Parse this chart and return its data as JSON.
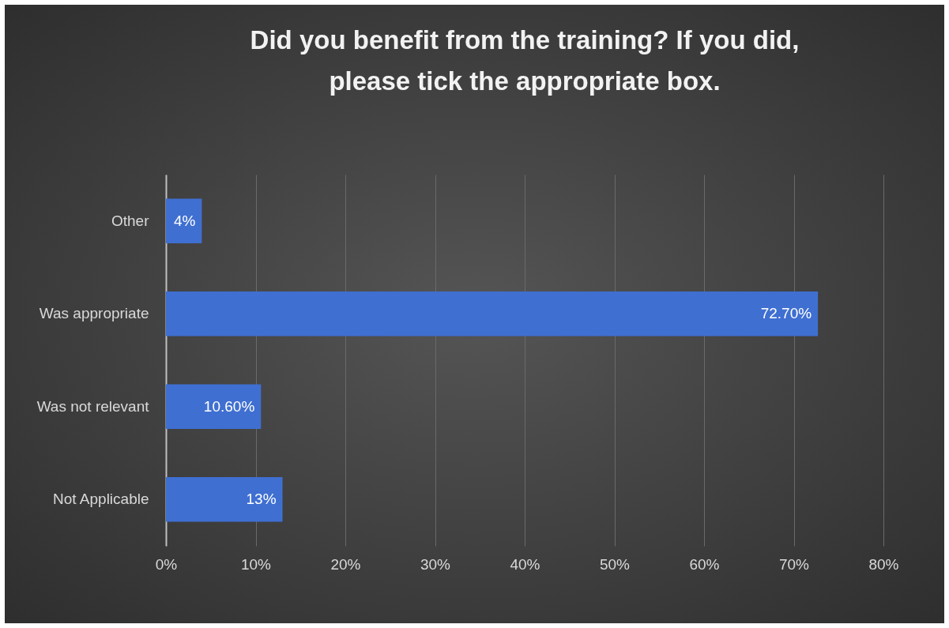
{
  "chart_data": {
    "type": "bar",
    "orientation": "horizontal",
    "title": "Did you benefit from the training? If you did, please tick the appropriate box.",
    "categories": [
      "Other",
      "Was appropriate",
      "Was not relevant",
      "Not Applicable"
    ],
    "values": [
      4,
      72.7,
      10.6,
      13
    ],
    "value_labels": [
      "4%",
      "72.70%",
      "10.60%",
      "13%"
    ],
    "color": "#3f6fd1",
    "xlim": [
      0,
      80
    ],
    "xticks": [
      {
        "value": 0,
        "label": "0%"
      },
      {
        "value": 10,
        "label": "10%"
      },
      {
        "value": 20,
        "label": "20%"
      },
      {
        "value": 30,
        "label": "30%"
      },
      {
        "value": 40,
        "label": "40%"
      },
      {
        "value": 50,
        "label": "50%"
      },
      {
        "value": 60,
        "label": "60%"
      },
      {
        "value": 70,
        "label": "70%"
      },
      {
        "value": 80,
        "label": "80%"
      }
    ],
    "grid": "x"
  }
}
